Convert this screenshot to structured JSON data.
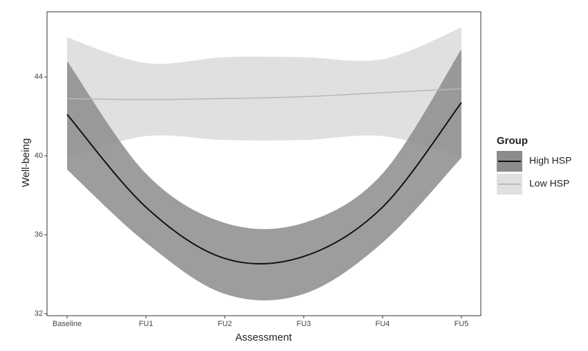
{
  "chart_data": {
    "type": "line",
    "x_label": "Assessment",
    "y_label": "Well-being",
    "categories": [
      "Baseline",
      "FU1",
      "FU2",
      "FU3",
      "FU4",
      "FU5"
    ],
    "ylim": [
      31.9,
      47.3
    ],
    "yticks": [
      32,
      36,
      40,
      44
    ],
    "legend_title": "Group",
    "legend_position": "right",
    "series": [
      {
        "name": "Low HSP",
        "color": "#b8b8b8",
        "band_color": "#e0e0e0",
        "values": [
          42.9,
          42.85,
          42.9,
          43.0,
          43.2,
          43.4
        ],
        "upper": [
          46.0,
          44.7,
          45.0,
          45.0,
          44.9,
          46.5
        ],
        "lower": [
          39.9,
          41.0,
          40.8,
          40.8,
          41.0,
          40.0
        ]
      },
      {
        "name": "High HSP",
        "color": "#111111",
        "band_color": "#8c8c8c",
        "values": [
          42.1,
          37.4,
          34.8,
          34.9,
          37.4,
          42.7
        ],
        "upper": [
          44.8,
          39.1,
          36.6,
          36.6,
          39.1,
          45.4
        ],
        "lower": [
          39.3,
          35.6,
          33.0,
          33.0,
          35.6,
          39.9
        ]
      }
    ]
  }
}
